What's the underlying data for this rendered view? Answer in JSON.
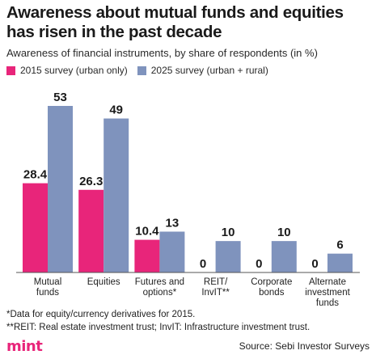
{
  "title": "Awareness about mutual funds and equities has risen in the past decade",
  "subtitle": "Awareness of financial instruments, by share of respondents (in %)",
  "footnotes": [
    "*Data for equity/currency derivatives for 2015.",
    "**REIT: Real estate investment trust; InvIT: Infrastructure investment trust."
  ],
  "source": "Source: Sebi Investor Surveys",
  "logo": "mint",
  "colors": {
    "series_2015": "#e8257a",
    "series_2025": "#7f93bd",
    "axis": "#555555"
  },
  "chart_data": {
    "type": "bar",
    "categories": [
      [
        "Mutual",
        "funds"
      ],
      [
        "Equities"
      ],
      [
        "Futures and",
        "options*"
      ],
      [
        "REIT/",
        "InvIT**"
      ],
      [
        "Corporate",
        "bonds"
      ],
      [
        "Alternate",
        "investment",
        "funds"
      ]
    ],
    "series": [
      {
        "name": "2015 survey (urban only)",
        "values": [
          28.4,
          26.3,
          10.4,
          0,
          0,
          0
        ],
        "labels": [
          "28.4",
          "26.3",
          "10.4",
          "0",
          "0",
          "0"
        ]
      },
      {
        "name": "2025 survey (urban + rural)",
        "values": [
          53,
          49,
          13,
          10,
          10,
          6
        ],
        "labels": [
          "53",
          "49",
          "13",
          "10",
          "10",
          "6"
        ]
      }
    ],
    "ylim": [
      0,
      60
    ],
    "grid": false,
    "legend_position": "top-left"
  }
}
